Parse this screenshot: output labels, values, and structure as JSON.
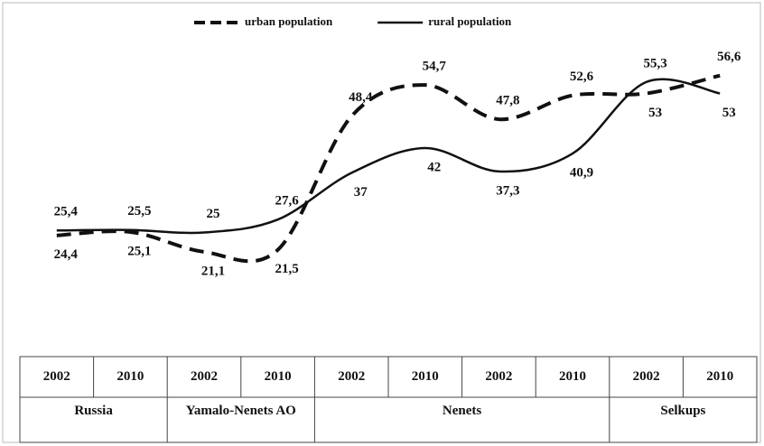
{
  "chart_data": {
    "type": "line",
    "categories": [
      "2002",
      "2010",
      "2002",
      "2010",
      "2002",
      "2010",
      "2002",
      "2010",
      "2002",
      "2010"
    ],
    "groups": [
      {
        "label": "Russia",
        "span": 2
      },
      {
        "label": "Yamalo-Nenets AO",
        "span": 2
      },
      {
        "label": "Nenets",
        "span": 4
      },
      {
        "label": "Selkups",
        "span": 2
      }
    ],
    "ylim": [
      0,
      70
    ],
    "series": [
      {
        "name": "urban population",
        "color": "#111111",
        "style": "dashed",
        "values": [
          24.4,
          25.1,
          21.1,
          21.5,
          48.4,
          54.7,
          47.8,
          52.6,
          53,
          56.6
        ],
        "value_labels": [
          "24,4",
          "25,1",
          "21,1",
          "21,5",
          "48,4",
          "54,7",
          "47,8",
          "52,6",
          "53",
          "56,6"
        ]
      },
      {
        "name": "rural population",
        "color": "#111111",
        "style": "solid",
        "values": [
          25.4,
          25.5,
          25,
          27.6,
          37,
          42,
          37.3,
          40.9,
          55.3,
          53
        ],
        "value_labels": [
          "25,4",
          "25,5",
          "25",
          "27,6",
          "37",
          "42",
          "37,3",
          "40,9",
          "55,3",
          "53"
        ]
      }
    ]
  }
}
